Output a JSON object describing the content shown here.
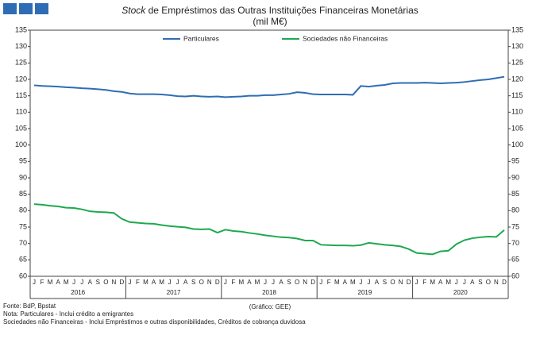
{
  "chart_data": {
    "type": "line",
    "title_italic": "Stock",
    "title": "de Empréstimos das Outras Instituições Financeiras Monetárias",
    "subtitle": "(mil M€)",
    "categories": [
      "J",
      "F",
      "M",
      "A",
      "M",
      "J",
      "J",
      "A",
      "S",
      "O",
      "N",
      "D",
      "J",
      "F",
      "M",
      "A",
      "M",
      "J",
      "J",
      "A",
      "S",
      "O",
      "N",
      "D",
      "J",
      "F",
      "M",
      "A",
      "M",
      "J",
      "J",
      "A",
      "S",
      "O",
      "N",
      "D",
      "J",
      "F",
      "M",
      "A",
      "M",
      "J",
      "J",
      "A",
      "S",
      "O",
      "N",
      "D",
      "J",
      "F",
      "M",
      "A",
      "M",
      "J",
      "J",
      "A",
      "S",
      "O",
      "N",
      "D"
    ],
    "years": [
      "2016",
      "2017",
      "2018",
      "2019",
      "2020"
    ],
    "series": [
      {
        "name": "Particulares",
        "color": "#2e6db4",
        "values": [
          118.2,
          118.0,
          117.9,
          117.8,
          117.6,
          117.5,
          117.3,
          117.2,
          117.0,
          116.8,
          116.4,
          116.2,
          115.7,
          115.5,
          115.5,
          115.5,
          115.4,
          115.2,
          114.9,
          114.8,
          115.0,
          114.8,
          114.7,
          114.8,
          114.6,
          114.7,
          114.8,
          115.0,
          115.0,
          115.2,
          115.2,
          115.4,
          115.6,
          116.1,
          115.9,
          115.5,
          115.4,
          115.4,
          115.4,
          115.4,
          115.3,
          118.0,
          117.8,
          118.1,
          118.3,
          118.8,
          118.9,
          118.9,
          118.9,
          119.0,
          118.9,
          118.8,
          118.9,
          119.0,
          119.2,
          119.5,
          119.8,
          120.0,
          120.4,
          120.8
        ]
      },
      {
        "name": "Sociedades não Financeiras",
        "color": "#1fa84f",
        "values": [
          82.0,
          81.8,
          81.5,
          81.3,
          80.9,
          80.8,
          80.4,
          79.8,
          79.6,
          79.5,
          79.3,
          77.5,
          76.5,
          76.3,
          76.1,
          76.0,
          75.6,
          75.3,
          75.1,
          74.9,
          74.4,
          74.3,
          74.4,
          73.3,
          74.2,
          73.8,
          73.6,
          73.2,
          72.9,
          72.5,
          72.2,
          71.9,
          71.8,
          71.5,
          70.9,
          70.9,
          69.6,
          69.5,
          69.4,
          69.4,
          69.3,
          69.5,
          70.2,
          69.9,
          69.6,
          69.4,
          69.1,
          68.3,
          67.1,
          66.9,
          66.7,
          67.6,
          67.8,
          69.8,
          71.0,
          71.6,
          71.9,
          72.1,
          72.0,
          74.1
        ]
      }
    ],
    "ylim": [
      60,
      135
    ],
    "yticks": [
      60,
      65,
      70,
      75,
      80,
      85,
      90,
      95,
      100,
      105,
      110,
      115,
      120,
      125,
      130,
      135
    ],
    "y2lim": [
      60,
      135
    ],
    "y2ticks": [
      60,
      65,
      70,
      75,
      80,
      85,
      90,
      95,
      100,
      105,
      110,
      115,
      120,
      125,
      130,
      135
    ],
    "grid": false,
    "legend": "top",
    "notes": [
      "Fonte: BdP, Bpstat",
      "Nota: Particulares - Inclui crédito a emigrantes",
      "Sociedades não Financeiras - Inclui Empréstimos e outras disponibilidades, Créditos de cobrança duvidosa"
    ],
    "credit": "(Gráfico: GEE)"
  }
}
